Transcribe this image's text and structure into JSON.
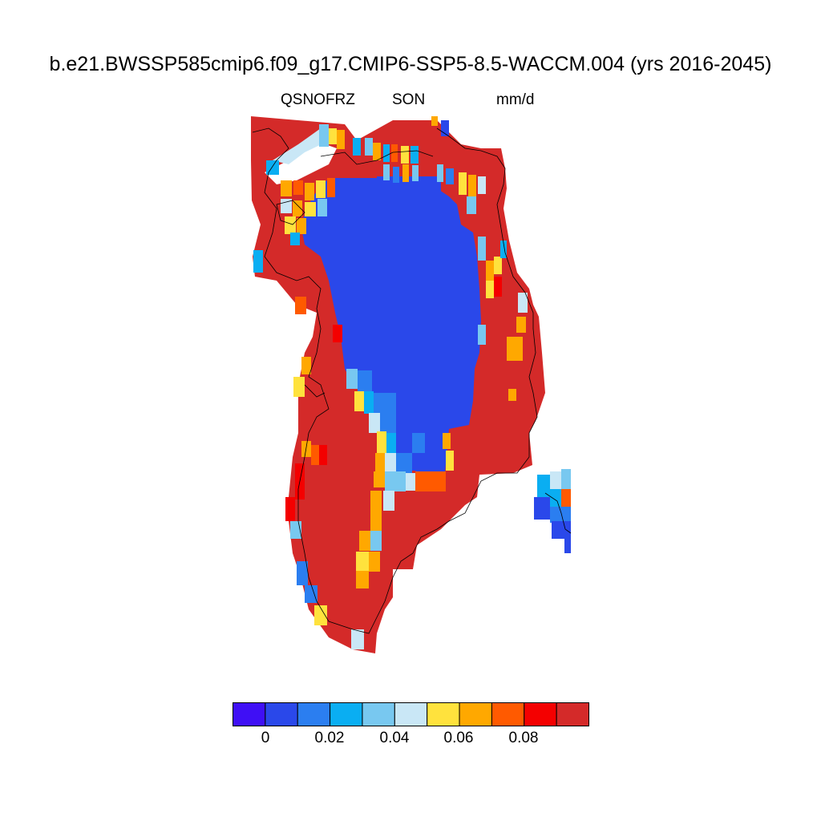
{
  "title": "b.e21.BWSSP585cmip6.f09_g17.CMIP6-SSP5-8.5-WACCM.004 (yrs 2016-2045)",
  "subtitle": {
    "variable": "QSNOFRZ",
    "season": "SON",
    "units": "mm/d"
  },
  "colorbar": {
    "colors": [
      "#3f0ff5",
      "#2a48ea",
      "#2b7ef0",
      "#0aaef2",
      "#78c8f0",
      "#c9e7f6",
      "#ffe23d",
      "#ffa800",
      "#ff5a00",
      "#f40000",
      "#d42a29"
    ],
    "tick_labels": [
      "0",
      "0.02",
      "0.04",
      "0.06",
      "0.08"
    ]
  }
}
